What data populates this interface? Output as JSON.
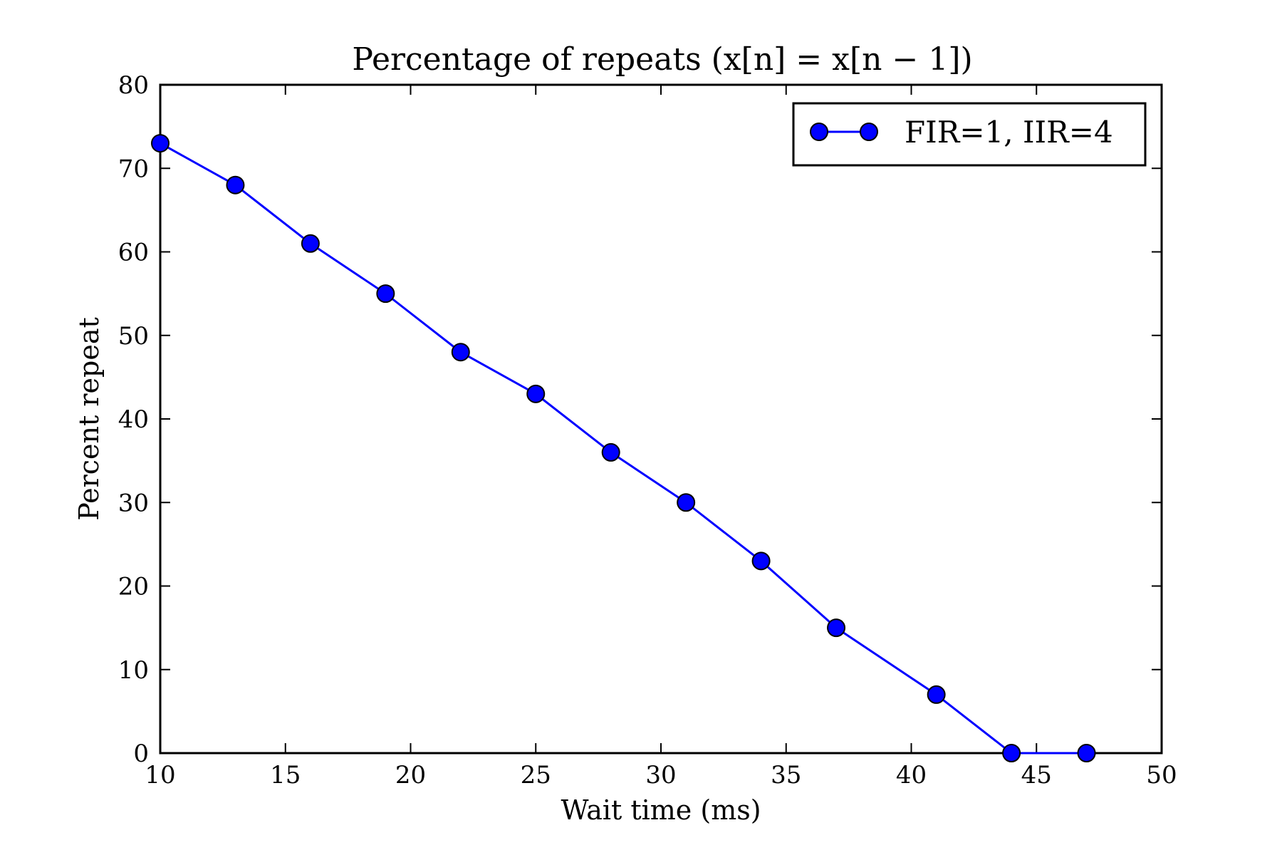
{
  "chart_data": {
    "type": "line",
    "title": "Percentage of repeats (x[n] = x[n − 1])",
    "xlabel": "Wait time (ms)",
    "ylabel": "Percent repeat",
    "xlim": [
      10,
      50
    ],
    "ylim": [
      0,
      80
    ],
    "xticks": [
      10,
      15,
      20,
      25,
      30,
      35,
      40,
      45,
      50
    ],
    "yticks": [
      0,
      10,
      20,
      30,
      40,
      50,
      60,
      70,
      80
    ],
    "grid": false,
    "legend_position": "top-right",
    "series": [
      {
        "name": "FIR=1, IIR=4",
        "color": "#0000ff",
        "marker": "circle",
        "x": [
          10,
          13,
          16,
          19,
          22,
          25,
          28,
          31,
          34,
          37,
          41,
          44,
          47
        ],
        "y": [
          73,
          68,
          61,
          55,
          48,
          43,
          36,
          30,
          23,
          15,
          7,
          0,
          0
        ]
      }
    ]
  }
}
